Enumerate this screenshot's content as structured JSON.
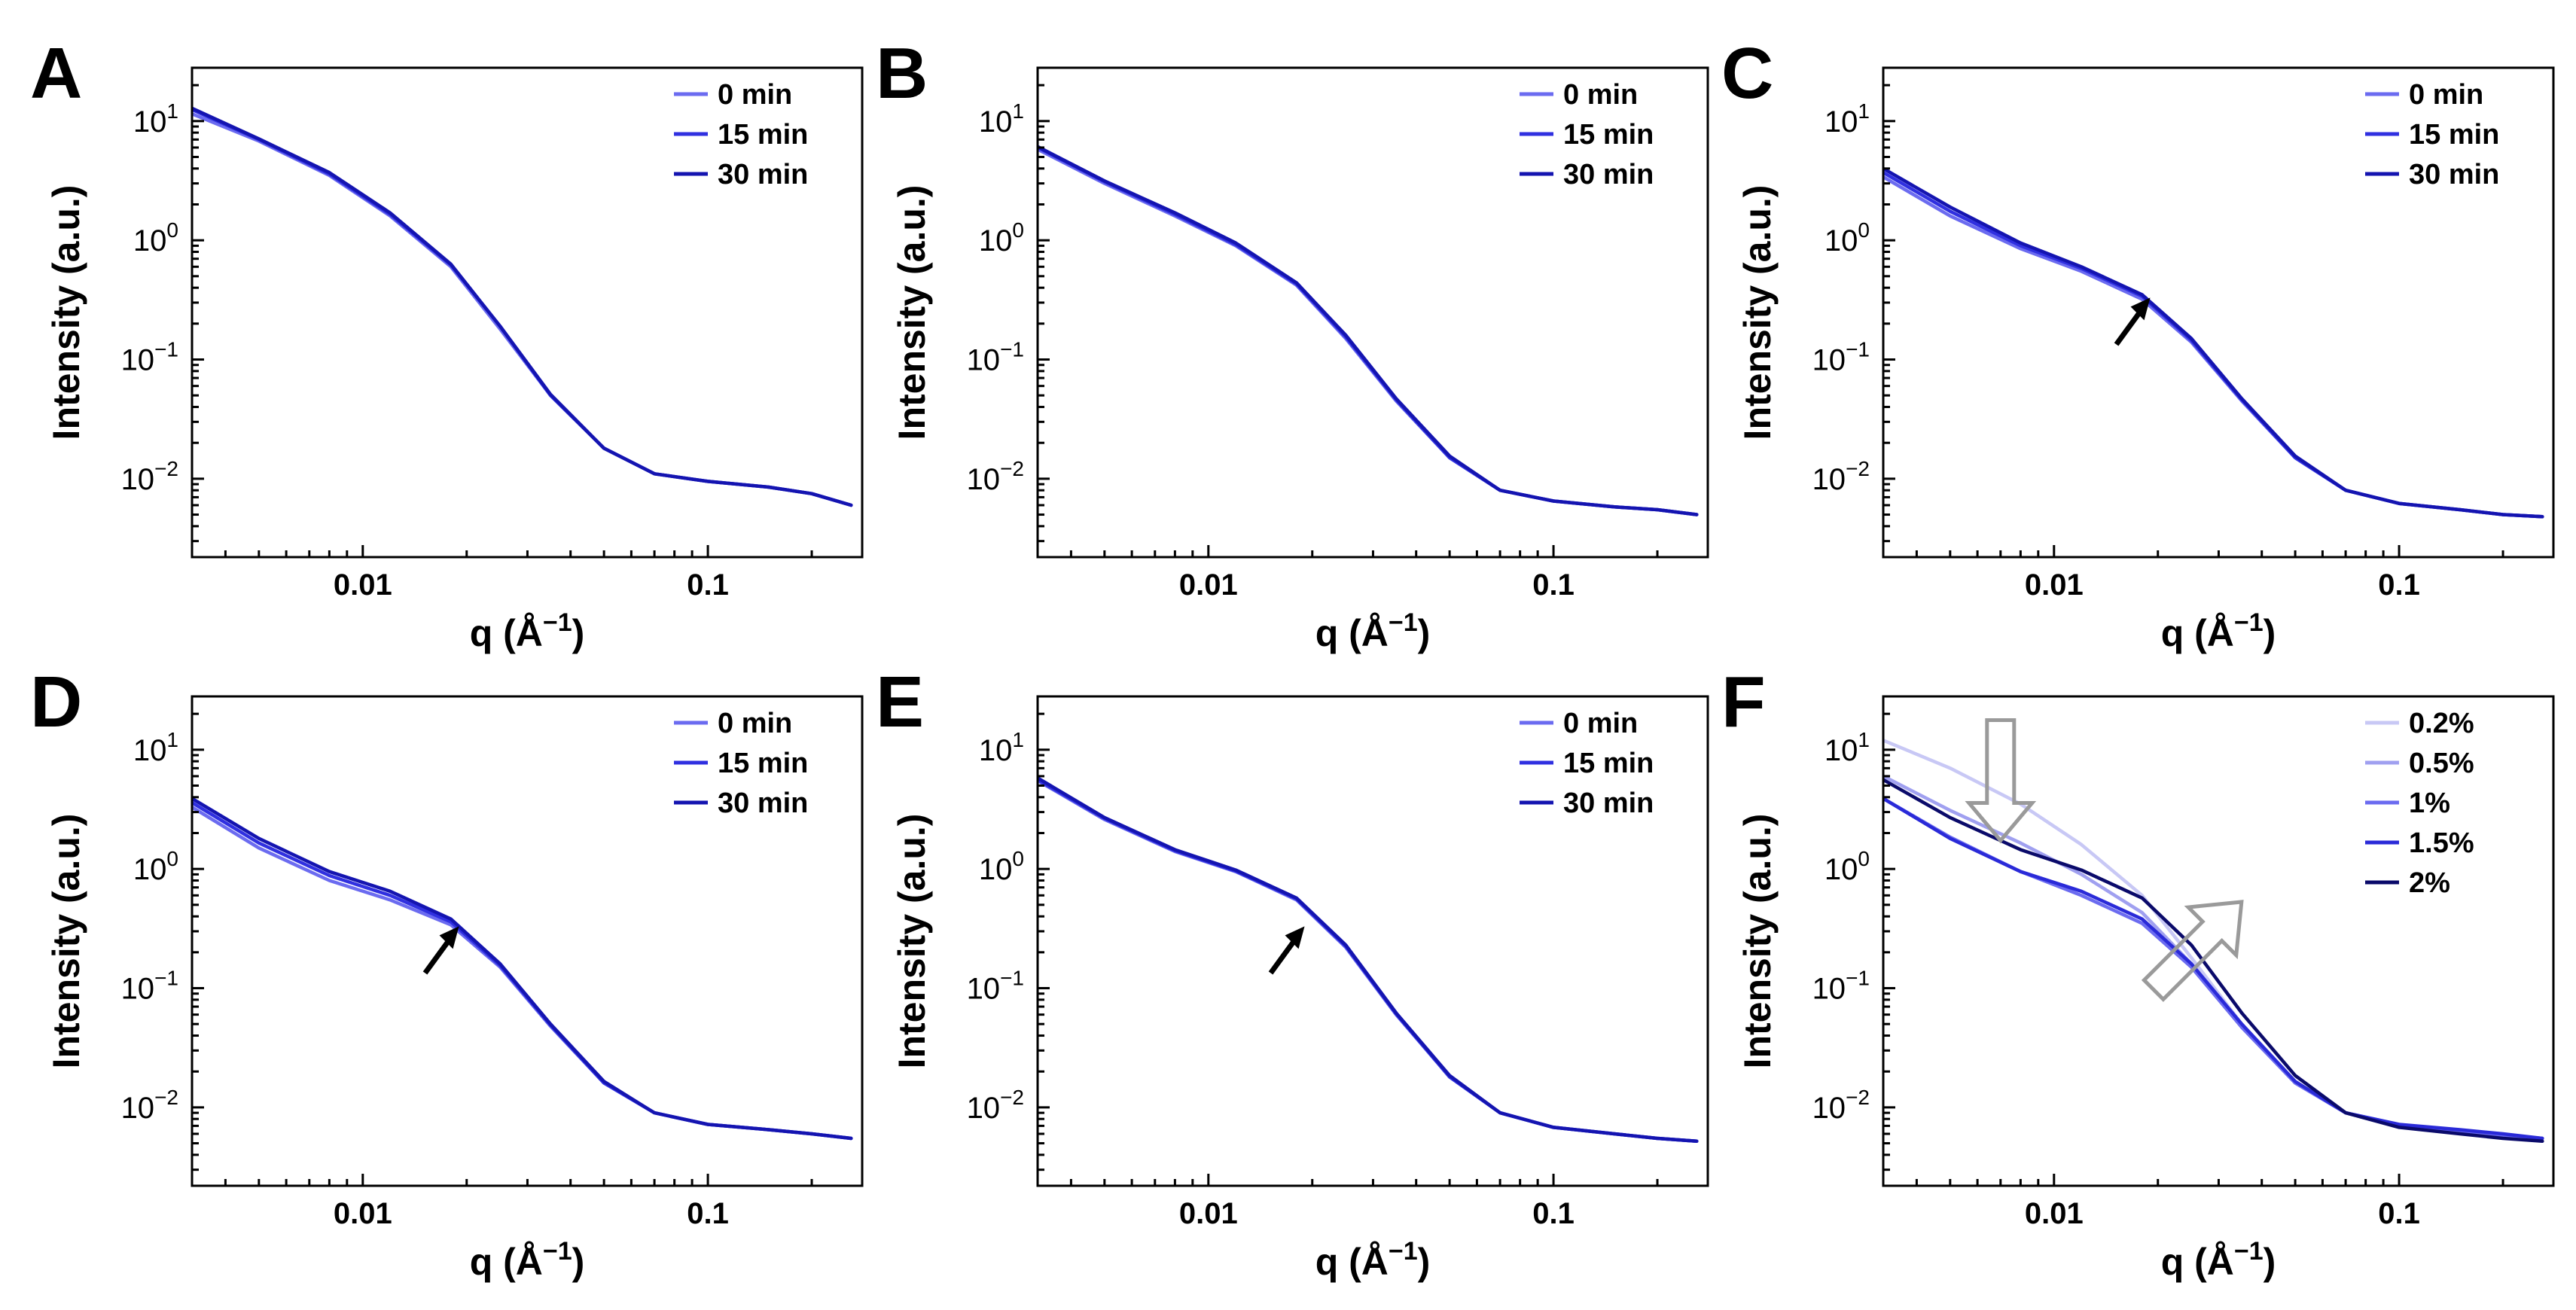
{
  "figure": {
    "axis_style": {
      "xlabel_main": "q (Å",
      "xlabel_sup": "−1",
      "xlabel_close": ")",
      "ylabel": "Intensity (a.u.)",
      "xtick_labels": [
        "0.01",
        "0.1"
      ],
      "ytick_base": "10"
    }
  },
  "chart_data": [
    {
      "panel": "A",
      "type": "line",
      "xscale": "log",
      "yscale": "log",
      "xlabel": "q (Å−1)",
      "ylabel": "Intensity (a.u.)",
      "xlim": [
        0.0032,
        0.28
      ],
      "ylim": [
        0.0022,
        28
      ],
      "xticks": [
        0.01,
        0.1
      ],
      "yticks": [
        0.01,
        0.1,
        1,
        10
      ],
      "legend": "top-right",
      "grid": false,
      "series": [
        {
          "name": "0 min",
          "color": "#6b6bf0",
          "x": [
            0.0032,
            0.005,
            0.008,
            0.012,
            0.018,
            0.025,
            0.035,
            0.05,
            0.07,
            0.1,
            0.15,
            0.2,
            0.26
          ],
          "y": [
            11.5,
            6.8,
            3.5,
            1.6,
            0.6,
            0.18,
            0.05,
            0.018,
            0.011,
            0.0095,
            0.0085,
            0.0075,
            0.006
          ]
        },
        {
          "name": "15 min",
          "color": "#3030e0",
          "x": [
            0.0032,
            0.005,
            0.008,
            0.012,
            0.018,
            0.025,
            0.035,
            0.05,
            0.07,
            0.1,
            0.15,
            0.2,
            0.26
          ],
          "y": [
            12.5,
            7.0,
            3.6,
            1.65,
            0.62,
            0.19,
            0.05,
            0.018,
            0.011,
            0.0095,
            0.0085,
            0.0075,
            0.006
          ]
        },
        {
          "name": "30 min",
          "color": "#1414b0",
          "x": [
            0.0032,
            0.005,
            0.008,
            0.012,
            0.018,
            0.025,
            0.035,
            0.05,
            0.07,
            0.1,
            0.15,
            0.2,
            0.26
          ],
          "y": [
            12.8,
            7.1,
            3.7,
            1.7,
            0.63,
            0.19,
            0.051,
            0.018,
            0.011,
            0.0095,
            0.0085,
            0.0075,
            0.006
          ]
        }
      ]
    },
    {
      "panel": "B",
      "type": "line",
      "xscale": "log",
      "yscale": "log",
      "xlabel": "q (Å−1)",
      "ylabel": "Intensity (a.u.)",
      "xlim": [
        0.0032,
        0.28
      ],
      "ylim": [
        0.0022,
        28
      ],
      "xticks": [
        0.01,
        0.1
      ],
      "yticks": [
        0.01,
        0.1,
        1,
        10
      ],
      "legend": "top-right",
      "grid": false,
      "series": [
        {
          "name": "0 min",
          "color": "#6b6bf0",
          "x": [
            0.0032,
            0.005,
            0.008,
            0.012,
            0.018,
            0.025,
            0.035,
            0.05,
            0.07,
            0.1,
            0.15,
            0.2,
            0.26
          ],
          "y": [
            5.8,
            3.0,
            1.6,
            0.9,
            0.42,
            0.15,
            0.045,
            0.015,
            0.008,
            0.0065,
            0.0058,
            0.0055,
            0.005
          ]
        },
        {
          "name": "15 min",
          "color": "#3030e0",
          "x": [
            0.0032,
            0.005,
            0.008,
            0.012,
            0.018,
            0.025,
            0.035,
            0.05,
            0.07,
            0.1,
            0.15,
            0.2,
            0.26
          ],
          "y": [
            6.0,
            3.1,
            1.65,
            0.92,
            0.43,
            0.155,
            0.046,
            0.015,
            0.008,
            0.0065,
            0.0058,
            0.0055,
            0.005
          ]
        },
        {
          "name": "30 min",
          "color": "#1414b0",
          "x": [
            0.0032,
            0.005,
            0.008,
            0.012,
            0.018,
            0.025,
            0.035,
            0.05,
            0.07,
            0.1,
            0.15,
            0.2,
            0.26
          ],
          "y": [
            6.1,
            3.15,
            1.7,
            0.95,
            0.44,
            0.16,
            0.047,
            0.0155,
            0.008,
            0.0065,
            0.0058,
            0.0055,
            0.005
          ]
        }
      ]
    },
    {
      "panel": "C",
      "type": "line",
      "xscale": "log",
      "yscale": "log",
      "xlabel": "q (Å−1)",
      "ylabel": "Intensity (a.u.)",
      "xlim": [
        0.0032,
        0.28
      ],
      "ylim": [
        0.0022,
        28
      ],
      "xticks": [
        0.01,
        0.1
      ],
      "yticks": [
        0.01,
        0.1,
        1,
        10
      ],
      "legend": "top-right",
      "grid": false,
      "series": [
        {
          "name": "0 min",
          "color": "#6b6bf0",
          "x": [
            0.0032,
            0.005,
            0.008,
            0.012,
            0.018,
            0.025,
            0.035,
            0.05,
            0.07,
            0.1,
            0.15,
            0.2,
            0.26
          ],
          "y": [
            3.4,
            1.6,
            0.85,
            0.55,
            0.32,
            0.14,
            0.045,
            0.015,
            0.008,
            0.0062,
            0.0055,
            0.005,
            0.0048
          ]
        },
        {
          "name": "15 min",
          "color": "#3030e0",
          "x": [
            0.0032,
            0.005,
            0.008,
            0.012,
            0.018,
            0.025,
            0.035,
            0.05,
            0.07,
            0.1,
            0.15,
            0.2,
            0.26
          ],
          "y": [
            3.7,
            1.75,
            0.9,
            0.58,
            0.34,
            0.145,
            0.046,
            0.015,
            0.008,
            0.0062,
            0.0055,
            0.005,
            0.0048
          ]
        },
        {
          "name": "30 min",
          "color": "#1414b0",
          "x": [
            0.0032,
            0.005,
            0.008,
            0.012,
            0.018,
            0.025,
            0.035,
            0.05,
            0.07,
            0.1,
            0.15,
            0.2,
            0.26
          ],
          "y": [
            4.0,
            1.9,
            0.95,
            0.6,
            0.35,
            0.15,
            0.047,
            0.0155,
            0.008,
            0.0062,
            0.0055,
            0.005,
            0.0048
          ]
        }
      ]
    },
    {
      "panel": "D",
      "type": "line",
      "xscale": "log",
      "yscale": "log",
      "xlabel": "q (Å−1)",
      "ylabel": "Intensity (a.u.)",
      "xlim": [
        0.0032,
        0.28
      ],
      "ylim": [
        0.0022,
        28
      ],
      "xticks": [
        0.01,
        0.1
      ],
      "yticks": [
        0.01,
        0.1,
        1,
        10
      ],
      "legend": "top-right",
      "grid": false,
      "series": [
        {
          "name": "0 min",
          "color": "#6b6bf0",
          "x": [
            0.0032,
            0.005,
            0.008,
            0.012,
            0.018,
            0.025,
            0.035,
            0.05,
            0.07,
            0.1,
            0.15,
            0.2,
            0.26
          ],
          "y": [
            3.3,
            1.5,
            0.8,
            0.55,
            0.34,
            0.15,
            0.048,
            0.016,
            0.009,
            0.0072,
            0.0065,
            0.006,
            0.0055
          ]
        },
        {
          "name": "15 min",
          "color": "#3030e0",
          "x": [
            0.0032,
            0.005,
            0.008,
            0.012,
            0.018,
            0.025,
            0.035,
            0.05,
            0.07,
            0.1,
            0.15,
            0.2,
            0.26
          ],
          "y": [
            3.6,
            1.65,
            0.88,
            0.6,
            0.36,
            0.155,
            0.049,
            0.016,
            0.009,
            0.0072,
            0.0065,
            0.006,
            0.0055
          ]
        },
        {
          "name": "30 min",
          "color": "#1414b0",
          "x": [
            0.0032,
            0.005,
            0.008,
            0.012,
            0.018,
            0.025,
            0.035,
            0.05,
            0.07,
            0.1,
            0.15,
            0.2,
            0.26
          ],
          "y": [
            3.9,
            1.8,
            0.95,
            0.65,
            0.38,
            0.16,
            0.05,
            0.0165,
            0.009,
            0.0072,
            0.0065,
            0.006,
            0.0055
          ]
        }
      ]
    },
    {
      "panel": "E",
      "type": "line",
      "xscale": "log",
      "yscale": "log",
      "xlabel": "q (Å−1)",
      "ylabel": "Intensity (a.u.)",
      "xlim": [
        0.0032,
        0.28
      ],
      "ylim": [
        0.0022,
        28
      ],
      "xticks": [
        0.01,
        0.1
      ],
      "yticks": [
        0.01,
        0.1,
        1,
        10
      ],
      "legend": "top-right",
      "grid": false,
      "series": [
        {
          "name": "0 min",
          "color": "#6b6bf0",
          "x": [
            0.0032,
            0.005,
            0.008,
            0.012,
            0.018,
            0.025,
            0.035,
            0.05,
            0.07,
            0.1,
            0.15,
            0.2,
            0.26
          ],
          "y": [
            5.5,
            2.6,
            1.4,
            0.95,
            0.55,
            0.22,
            0.06,
            0.018,
            0.009,
            0.0068,
            0.006,
            0.0055,
            0.0052
          ]
        },
        {
          "name": "15 min",
          "color": "#3030e0",
          "x": [
            0.0032,
            0.005,
            0.008,
            0.012,
            0.018,
            0.025,
            0.035,
            0.05,
            0.07,
            0.1,
            0.15,
            0.2,
            0.26
          ],
          "y": [
            5.6,
            2.65,
            1.42,
            0.96,
            0.56,
            0.225,
            0.061,
            0.018,
            0.009,
            0.0068,
            0.006,
            0.0055,
            0.0052
          ]
        },
        {
          "name": "30 min",
          "color": "#1414b0",
          "x": [
            0.0032,
            0.005,
            0.008,
            0.012,
            0.018,
            0.025,
            0.035,
            0.05,
            0.07,
            0.1,
            0.15,
            0.2,
            0.26
          ],
          "y": [
            5.8,
            2.7,
            1.45,
            0.98,
            0.57,
            0.23,
            0.062,
            0.0185,
            0.009,
            0.0068,
            0.006,
            0.0055,
            0.0052
          ]
        }
      ]
    },
    {
      "panel": "F",
      "type": "line",
      "xscale": "log",
      "yscale": "log",
      "xlabel": "q (Å−1)",
      "ylabel": "Intensity (a.u.)",
      "xlim": [
        0.0032,
        0.28
      ],
      "ylim": [
        0.0022,
        28
      ],
      "xticks": [
        0.01,
        0.1
      ],
      "yticks": [
        0.01,
        0.1,
        1,
        10
      ],
      "legend": "top-right",
      "grid": false,
      "series": [
        {
          "name": "0.2%",
          "color": "#c8c8f5",
          "x": [
            0.0032,
            0.005,
            0.008,
            0.012,
            0.018,
            0.025,
            0.035,
            0.05,
            0.07,
            0.1,
            0.15,
            0.2,
            0.26
          ],
          "y": [
            12.0,
            7.0,
            3.5,
            1.6,
            0.6,
            0.18,
            0.05,
            0.016,
            0.009,
            0.0072,
            0.0062,
            0.0058,
            0.0055
          ]
        },
        {
          "name": "0.5%",
          "color": "#a0a0f0",
          "x": [
            0.0032,
            0.005,
            0.008,
            0.012,
            0.018,
            0.025,
            0.035,
            0.05,
            0.07,
            0.1,
            0.15,
            0.2,
            0.26
          ],
          "y": [
            6.0,
            3.1,
            1.65,
            0.9,
            0.43,
            0.16,
            0.047,
            0.016,
            0.009,
            0.007,
            0.0062,
            0.0058,
            0.0055
          ]
        },
        {
          "name": "1%",
          "color": "#6b6bf0",
          "x": [
            0.0032,
            0.005,
            0.008,
            0.012,
            0.018,
            0.025,
            0.035,
            0.05,
            0.07,
            0.1,
            0.15,
            0.2,
            0.26
          ],
          "y": [
            3.9,
            1.85,
            0.95,
            0.6,
            0.35,
            0.15,
            0.047,
            0.016,
            0.009,
            0.007,
            0.0062,
            0.0058,
            0.0055
          ]
        },
        {
          "name": "1.5%",
          "color": "#2a2ad8",
          "x": [
            0.0032,
            0.005,
            0.008,
            0.012,
            0.018,
            0.025,
            0.035,
            0.05,
            0.07,
            0.1,
            0.15,
            0.2,
            0.26
          ],
          "y": [
            3.9,
            1.8,
            0.95,
            0.65,
            0.38,
            0.16,
            0.05,
            0.0165,
            0.009,
            0.0072,
            0.0065,
            0.006,
            0.0055
          ]
        },
        {
          "name": "2%",
          "color": "#0a0a6a",
          "x": [
            0.0032,
            0.005,
            0.008,
            0.012,
            0.018,
            0.025,
            0.035,
            0.05,
            0.07,
            0.1,
            0.15,
            0.2,
            0.26
          ],
          "y": [
            5.6,
            2.7,
            1.45,
            0.98,
            0.57,
            0.23,
            0.062,
            0.0185,
            0.009,
            0.0068,
            0.006,
            0.0055,
            0.0052
          ]
        }
      ]
    }
  ]
}
